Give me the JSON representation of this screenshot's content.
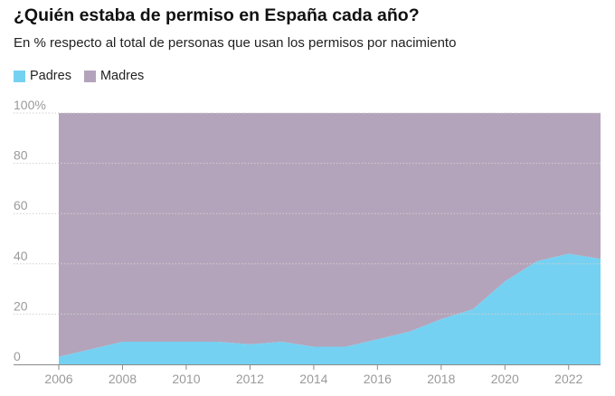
{
  "chart_data": {
    "type": "area",
    "title": "¿Quién estaba de permiso en España cada año?",
    "subtitle": "En % respecto al total de personas que usan los permisos por nacimiento",
    "stacked": true,
    "x": [
      2006,
      2007,
      2008,
      2009,
      2010,
      2011,
      2012,
      2013,
      2014,
      2015,
      2016,
      2017,
      2018,
      2019,
      2020,
      2021,
      2022,
      2023
    ],
    "series": [
      {
        "name": "Padres",
        "color": "#75d1f2",
        "values": [
          3,
          6,
          9,
          9,
          9,
          9,
          8,
          9,
          7,
          7,
          10,
          13,
          18,
          22,
          33,
          41,
          44,
          42
        ]
      },
      {
        "name": "Madres",
        "color": "#b4a4bb",
        "values": [
          97,
          94,
          91,
          91,
          91,
          91,
          92,
          91,
          93,
          93,
          90,
          87,
          82,
          78,
          67,
          59,
          56,
          58
        ]
      }
    ],
    "x_ticks": [
      "2006",
      "2008",
      "2010",
      "2012",
      "2014",
      "2016",
      "2018",
      "2020",
      "2022"
    ],
    "y_ticks": [
      "0",
      "20",
      "40",
      "60",
      "80",
      "100%"
    ],
    "xlim": [
      2006,
      2023
    ],
    "ylim": [
      0,
      100
    ],
    "grid": true,
    "legend": "top-left"
  }
}
